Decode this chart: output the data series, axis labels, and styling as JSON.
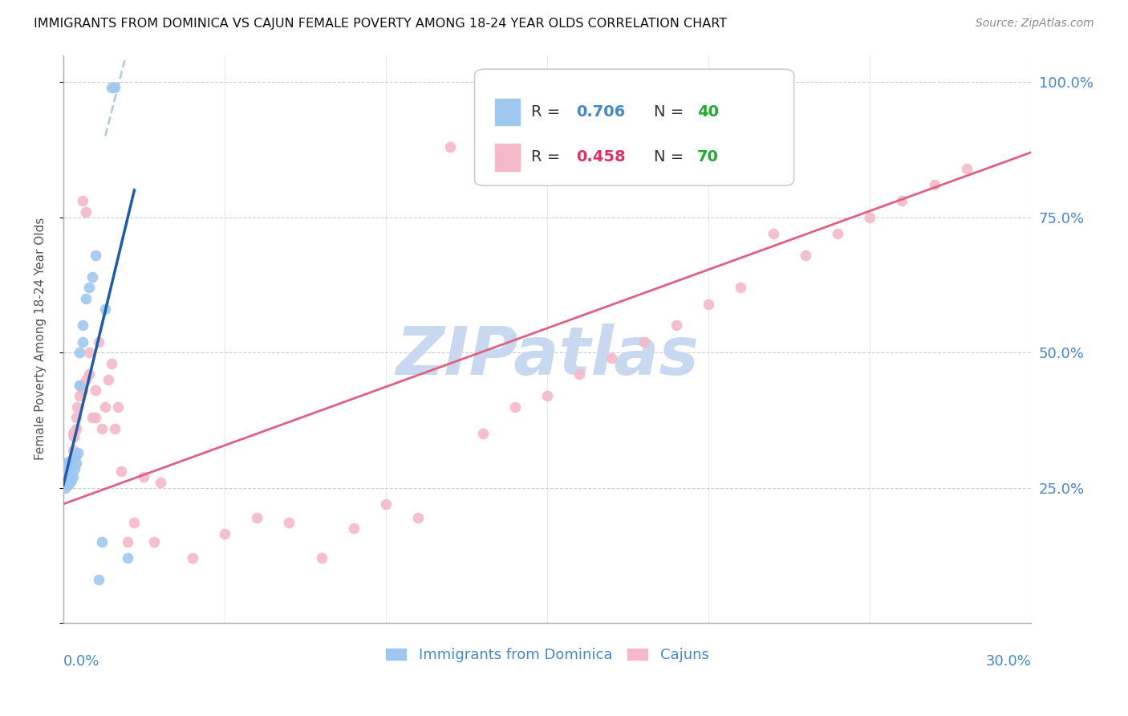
{
  "title": "IMMIGRANTS FROM DOMINICA VS CAJUN FEMALE POVERTY AMONG 18-24 YEAR OLDS CORRELATION CHART",
  "source": "Source: ZipAtlas.com",
  "ylabel": "Female Poverty Among 18-24 Year Olds",
  "blue_R": 0.706,
  "blue_N": 40,
  "pink_R": 0.458,
  "pink_N": 70,
  "blue_color": "#9EC8F0",
  "pink_color": "#F5B8C8",
  "blue_line_color": "#1A5CB0",
  "pink_line_color": "#E06080",
  "blue_dashed_color": "#B0CCE8",
  "watermark": "ZIPatlas",
  "watermark_color": "#C8D8F0",
  "legend_blue_R_color": "#4488CC",
  "legend_blue_N_color": "#22AA33",
  "legend_pink_R_color": "#DD3366",
  "legend_pink_N_color": "#22AA33",
  "right_axis_color": "#4488CC",
  "grid_color": "#CCCCCC",
  "xmin": 0.0,
  "xmax": 0.3,
  "ymin": 0.0,
  "ymax": 1.05,
  "blue_scatter_x": [
    0.0002,
    0.0003,
    0.0004,
    0.0005,
    0.0005,
    0.0006,
    0.0007,
    0.0008,
    0.0009,
    0.001,
    0.0012,
    0.0013,
    0.0014,
    0.0015,
    0.0016,
    0.0018,
    0.002,
    0.002,
    0.0022,
    0.0025,
    0.003,
    0.003,
    0.0035,
    0.004,
    0.004,
    0.0045,
    0.005,
    0.005,
    0.006,
    0.006,
    0.007,
    0.008,
    0.009,
    0.01,
    0.011,
    0.012,
    0.013,
    0.015,
    0.016,
    0.02
  ],
  "blue_scatter_y": [
    0.27,
    0.26,
    0.25,
    0.285,
    0.295,
    0.28,
    0.295,
    0.29,
    0.275,
    0.265,
    0.285,
    0.265,
    0.275,
    0.26,
    0.255,
    0.27,
    0.28,
    0.26,
    0.27,
    0.265,
    0.3,
    0.27,
    0.285,
    0.31,
    0.295,
    0.315,
    0.44,
    0.5,
    0.52,
    0.55,
    0.6,
    0.62,
    0.64,
    0.68,
    0.08,
    0.15,
    0.58,
    0.99,
    0.99,
    0.12
  ],
  "pink_scatter_x": [
    0.0003,
    0.0005,
    0.0007,
    0.001,
    0.001,
    0.0012,
    0.0013,
    0.0015,
    0.0016,
    0.0018,
    0.002,
    0.002,
    0.0022,
    0.0025,
    0.003,
    0.003,
    0.0032,
    0.0035,
    0.004,
    0.004,
    0.0042,
    0.005,
    0.005,
    0.006,
    0.006,
    0.007,
    0.007,
    0.008,
    0.008,
    0.009,
    0.01,
    0.01,
    0.011,
    0.012,
    0.013,
    0.014,
    0.015,
    0.016,
    0.017,
    0.018,
    0.02,
    0.022,
    0.025,
    0.028,
    0.03,
    0.04,
    0.05,
    0.06,
    0.07,
    0.08,
    0.09,
    0.1,
    0.11,
    0.12,
    0.13,
    0.14,
    0.15,
    0.16,
    0.17,
    0.18,
    0.19,
    0.2,
    0.21,
    0.22,
    0.23,
    0.24,
    0.25,
    0.26,
    0.27,
    0.28
  ],
  "pink_scatter_y": [
    0.285,
    0.28,
    0.295,
    0.28,
    0.265,
    0.295,
    0.285,
    0.275,
    0.265,
    0.28,
    0.3,
    0.27,
    0.285,
    0.275,
    0.35,
    0.32,
    0.345,
    0.355,
    0.38,
    0.36,
    0.4,
    0.42,
    0.44,
    0.43,
    0.78,
    0.76,
    0.45,
    0.5,
    0.46,
    0.38,
    0.43,
    0.38,
    0.52,
    0.36,
    0.4,
    0.45,
    0.48,
    0.36,
    0.4,
    0.28,
    0.15,
    0.185,
    0.27,
    0.15,
    0.26,
    0.12,
    0.165,
    0.195,
    0.185,
    0.12,
    0.175,
    0.22,
    0.195,
    0.88,
    0.35,
    0.4,
    0.42,
    0.46,
    0.49,
    0.52,
    0.55,
    0.59,
    0.62,
    0.72,
    0.68,
    0.72,
    0.75,
    0.78,
    0.81,
    0.84
  ],
  "blue_trend_x": [
    0.0,
    0.022
  ],
  "blue_trend_y": [
    0.255,
    0.8
  ],
  "pink_trend_x": [
    0.0,
    0.3
  ],
  "pink_trend_y": [
    0.22,
    0.87
  ]
}
